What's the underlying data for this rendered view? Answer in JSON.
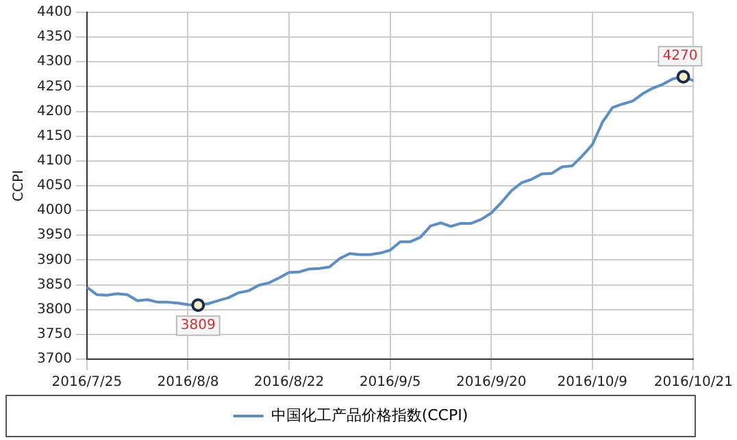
{
  "chart_data": {
    "type": "line",
    "ylabel": "CCPI",
    "categories": [
      "2016/7/25",
      null,
      null,
      null,
      null,
      null,
      null,
      null,
      null,
      null,
      "2016/8/8",
      null,
      null,
      null,
      null,
      null,
      null,
      null,
      null,
      null,
      "2016/8/22",
      null,
      null,
      null,
      null,
      null,
      null,
      null,
      null,
      null,
      "2016/9/5",
      null,
      null,
      null,
      null,
      null,
      null,
      null,
      null,
      null,
      "2016/9/20",
      null,
      null,
      null,
      null,
      null,
      null,
      null,
      null,
      null,
      "2016/10/9",
      null,
      null,
      null,
      null,
      null,
      null,
      null,
      null,
      null,
      "2016/10/21"
    ],
    "series": [
      {
        "name": "中国化工产品价格指数(CCPI)",
        "color": "#5b8ec4",
        "values": [
          3845,
          3830,
          3829,
          3832,
          3830,
          3818,
          3820,
          3815,
          3815,
          3813,
          3810,
          3809,
          3812,
          3818,
          3824,
          3834,
          3838,
          3849,
          3854,
          3864,
          3875,
          3876,
          3882,
          3883,
          3886,
          3903,
          3913,
          3911,
          3911,
          3914,
          3920,
          3937,
          3937,
          3946,
          3969,
          3975,
          3968,
          3974,
          3974,
          3982,
          3995,
          4016,
          4040,
          4056,
          4063,
          4074,
          4075,
          4088,
          4090,
          4110,
          4133,
          4178,
          4208,
          4215,
          4221,
          4236,
          4247,
          4255,
          4266,
          4270,
          4262
        ]
      }
    ],
    "annotations": [
      {
        "text": "3809",
        "y": 3809
      },
      {
        "text": "4270",
        "y": 4270
      }
    ],
    "ylim": [
      3700,
      4400
    ],
    "yticks": [
      3700,
      3750,
      3800,
      3850,
      3900,
      3950,
      4000,
      4050,
      4100,
      4150,
      4200,
      4250,
      4300,
      4350,
      4400
    ],
    "grid": true,
    "legend": "bottom",
    "marker": "none",
    "line_style": "solid"
  }
}
